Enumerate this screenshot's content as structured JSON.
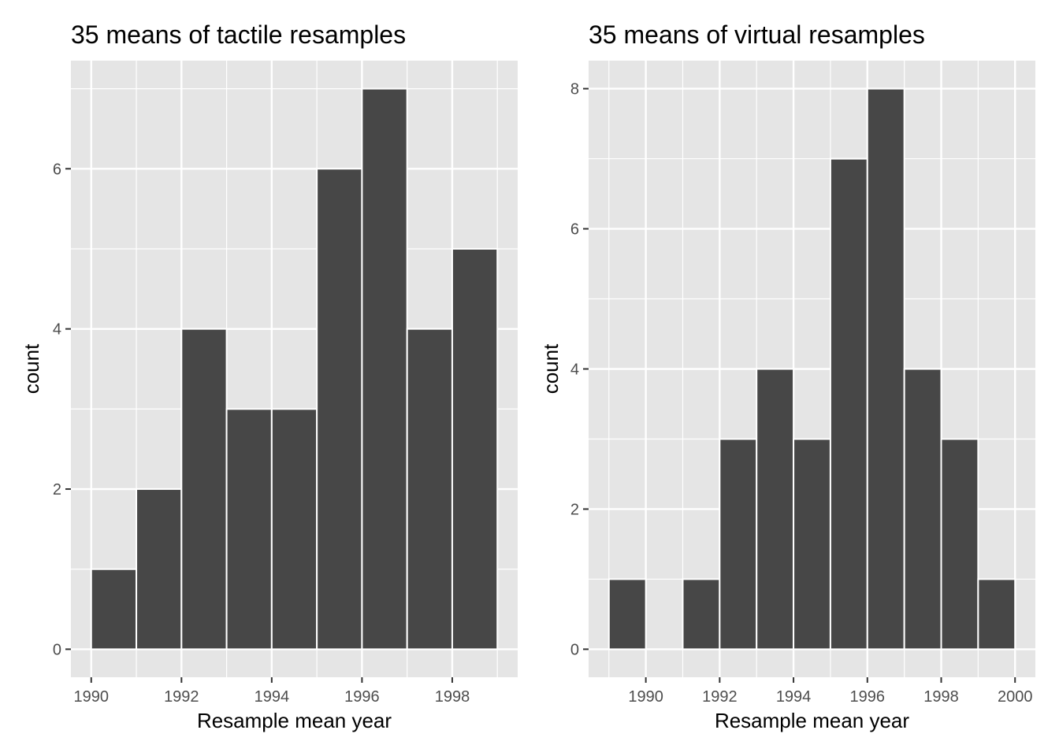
{
  "colors": {
    "panel_background": "#e5e5e5",
    "grid_line": "#ffffff",
    "bar_fill": "#474747",
    "bar_outline": "#ffffff",
    "tick_mark": "#333333"
  },
  "chart_data": [
    {
      "type": "bar",
      "title": "35 means of tactile resamples",
      "xlabel": "Resample mean year",
      "ylabel": "count",
      "xlim": [
        1989.55,
        1999.45
      ],
      "ylim": [
        -0.35,
        7.35
      ],
      "x_ticks": [
        1990,
        1992,
        1994,
        1996,
        1998
      ],
      "y_ticks": [
        0,
        2,
        4,
        6
      ],
      "grid": true,
      "bin_width": 1,
      "bins": [
        {
          "start": 1990,
          "end": 1991,
          "count": 1
        },
        {
          "start": 1991,
          "end": 1992,
          "count": 2
        },
        {
          "start": 1992,
          "end": 1993,
          "count": 4
        },
        {
          "start": 1993,
          "end": 1994,
          "count": 3
        },
        {
          "start": 1994,
          "end": 1995,
          "count": 3
        },
        {
          "start": 1995,
          "end": 1996,
          "count": 6
        },
        {
          "start": 1996,
          "end": 1997,
          "count": 7
        },
        {
          "start": 1997,
          "end": 1998,
          "count": 4
        },
        {
          "start": 1998,
          "end": 1999,
          "count": 5
        }
      ]
    },
    {
      "type": "bar",
      "title": "35 means of virtual resamples",
      "xlabel": "Resample mean year",
      "ylabel": "count",
      "xlim": [
        1988.45,
        2000.55
      ],
      "ylim": [
        -0.4,
        8.4
      ],
      "x_ticks": [
        1990,
        1992,
        1994,
        1996,
        1998,
        2000
      ],
      "y_ticks": [
        0,
        2,
        4,
        6,
        8
      ],
      "grid": true,
      "bin_width": 1,
      "bins": [
        {
          "start": 1989,
          "end": 1990,
          "count": 1
        },
        {
          "start": 1990,
          "end": 1991,
          "count": 0
        },
        {
          "start": 1991,
          "end": 1992,
          "count": 1
        },
        {
          "start": 1992,
          "end": 1993,
          "count": 3
        },
        {
          "start": 1993,
          "end": 1994,
          "count": 4
        },
        {
          "start": 1994,
          "end": 1995,
          "count": 3
        },
        {
          "start": 1995,
          "end": 1996,
          "count": 7
        },
        {
          "start": 1996,
          "end": 1997,
          "count": 8
        },
        {
          "start": 1997,
          "end": 1998,
          "count": 4
        },
        {
          "start": 1998,
          "end": 1999,
          "count": 3
        },
        {
          "start": 1999,
          "end": 2000,
          "count": 1
        }
      ]
    }
  ]
}
